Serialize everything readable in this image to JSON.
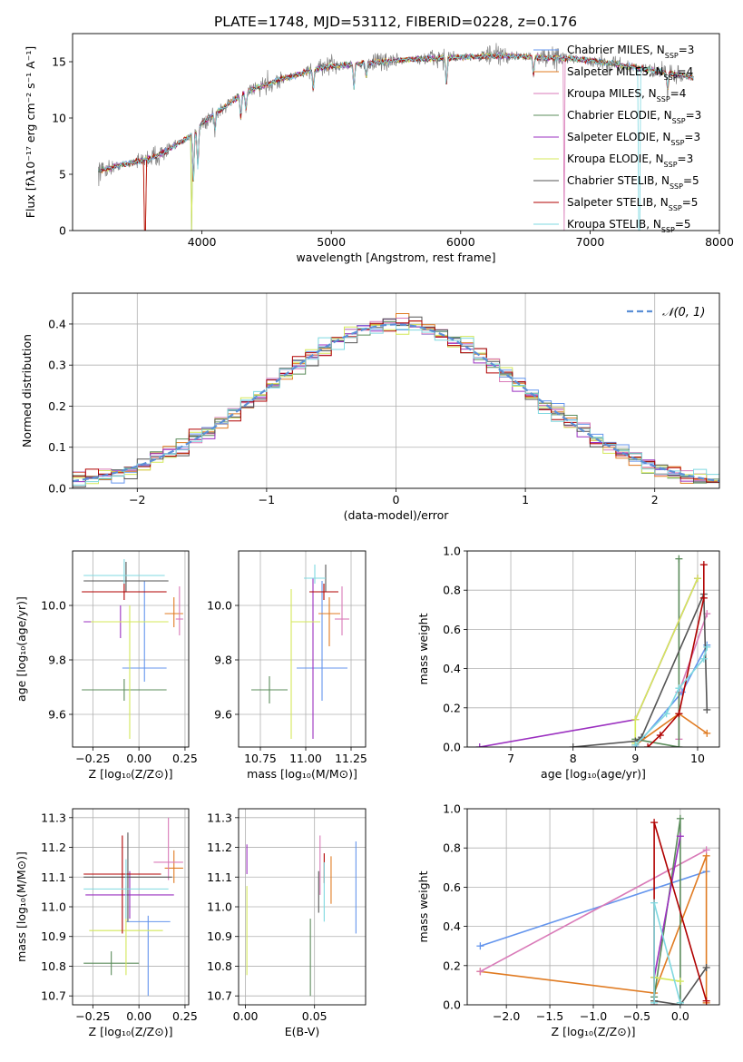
{
  "title": "PLATE=1748, MJD=53112, FIBERID=0228, z=0.176",
  "colors": [
    "#6495ed",
    "#e07b22",
    "#d97ab8",
    "#5b8c5b",
    "#9b30c0",
    "#d4e85a",
    "#555555",
    "#b00000",
    "#7fd8e0"
  ],
  "chart_data": [
    {
      "id": "spectrum",
      "type": "line",
      "xlabel": "wavelength [Angstrom, rest frame]",
      "ylabel": "Flux [fλ10⁻¹⁷ erg cm⁻² s⁻¹ A⁻¹]",
      "xlim": [
        3000,
        8000
      ],
      "ylim": [
        0,
        17.5
      ],
      "xticks": [
        4000,
        5000,
        6000,
        7000,
        8000
      ],
      "yticks": [
        0,
        5,
        10,
        15
      ],
      "legend": [
        "Chabrier MILES, N_SSP=3",
        "Salpeter MILES, N_SSP=4",
        "Kroupa MILES, N_SSP=4",
        "Chabrier ELODIE, N_SSP=3",
        "Salpeter ELODIE, N_SSP=3",
        "Kroupa ELODIE, N_SSP=3",
        "Chabrier STELIB, N_SSP=5",
        "Salpeter STELIB, N_SSP=5",
        "Kroupa STELIB, N_SSP=5"
      ],
      "continuum": {
        "x": [
          3200,
          3400,
          3600,
          3700,
          3800,
          3900,
          4000,
          4100,
          4200,
          4300,
          4400,
          4500,
          4600,
          4700,
          4800,
          4900,
          5000,
          5200,
          5400,
          5600,
          5800,
          6000,
          6200,
          6400,
          6600,
          6800,
          7000,
          7200,
          7400,
          7600,
          7800
        ],
        "y": [
          5.3,
          5.9,
          6.4,
          6.9,
          7.6,
          8.3,
          9.5,
          10.4,
          11.2,
          12.0,
          12.6,
          13.0,
          13.4,
          13.7,
          14.1,
          14.4,
          14.6,
          14.8,
          15.0,
          15.2,
          15.3,
          15.4,
          15.5,
          15.5,
          15.4,
          15.3,
          15.1,
          14.8,
          14.4,
          14.0,
          13.6
        ]
      }
    },
    {
      "id": "residuals",
      "type": "line",
      "xlabel": "(data-model)/error",
      "ylabel": "Normed distribution",
      "xlim": [
        -2.5,
        2.5
      ],
      "ylim": [
        0,
        0.475
      ],
      "xticks": [
        -2,
        -1,
        0,
        1,
        2
      ],
      "yticks": [
        0.0,
        0.1,
        0.2,
        0.3,
        0.4
      ],
      "legend": [
        "𝒩(0, 1)"
      ],
      "bin_width": 0.1
    },
    {
      "id": "age-vs-z",
      "type": "scatter",
      "xlabel": "Z [log₁₀(Z/Z⊙)]",
      "ylabel": "age  [log₁₀(age/yr)]",
      "xlim": [
        -0.36,
        0.27
      ],
      "ylim": [
        9.48,
        10.2
      ],
      "xticks": [
        -0.25,
        0.0,
        0.25
      ],
      "yticks": [
        9.6,
        9.8,
        10.0
      ],
      "points": [
        {
          "x": 0.03,
          "y": 9.77,
          "xerr": [
            0.12,
            0.12
          ],
          "yerr": [
            0.05,
            0.32
          ]
        },
        {
          "x": 0.19,
          "y": 9.97,
          "xerr": [
            0.05,
            0.05
          ],
          "yerr": [
            0.05,
            0.06
          ]
        },
        {
          "x": 0.22,
          "y": 9.95,
          "xerr": [
            0.02,
            0.02
          ],
          "yerr": [
            0.06,
            0.12
          ]
        },
        {
          "x": -0.08,
          "y": 9.69,
          "xerr": [
            0.23,
            0.23
          ],
          "yerr": [
            0.04,
            0.04
          ]
        },
        {
          "x": -0.1,
          "y": 9.94,
          "xerr": [
            0.2,
            0.2
          ],
          "yerr": [
            0.06,
            0.06
          ]
        },
        {
          "x": -0.05,
          "y": 9.94,
          "xerr": [
            0.21,
            0.21
          ],
          "yerr": [
            0.43,
            0.06
          ]
        },
        {
          "x": -0.07,
          "y": 10.09,
          "xerr": [
            0.23,
            0.23
          ],
          "yerr": [
            0.04,
            0.07
          ]
        },
        {
          "x": -0.08,
          "y": 10.05,
          "xerr": [
            0.23,
            0.23
          ],
          "yerr": [
            0.03,
            0.03
          ]
        },
        {
          "x": -0.08,
          "y": 10.11,
          "xerr": [
            0.22,
            0.22
          ],
          "yerr": [
            0.03,
            0.06
          ]
        }
      ]
    },
    {
      "id": "age-vs-mass",
      "type": "scatter",
      "xlabel": "mass [log₁₀(M/M⊙)]",
      "ylabel": "",
      "xlim": [
        10.63,
        11.33
      ],
      "ylim": [
        9.48,
        10.2
      ],
      "xticks": [
        10.75,
        11.0,
        11.25
      ],
      "yticks": [
        9.6,
        9.8,
        10.0
      ],
      "points": [
        {
          "x": 11.09,
          "y": 9.77,
          "xerr": [
            0.14,
            0.14
          ],
          "yerr": [
            0.12,
            0.32
          ]
        },
        {
          "x": 11.13,
          "y": 9.97,
          "xerr": [
            0.06,
            0.06
          ],
          "yerr": [
            0.12,
            0.06
          ]
        },
        {
          "x": 11.2,
          "y": 9.95,
          "xerr": [
            0.04,
            0.04
          ],
          "yerr": [
            0.06,
            0.12
          ]
        },
        {
          "x": 10.8,
          "y": 9.69,
          "xerr": [
            0.1,
            0.1
          ],
          "yerr": [
            0.05,
            0.05
          ]
        },
        {
          "x": 11.04,
          "y": 9.94,
          "xerr": [
            0.0,
            0.0
          ],
          "yerr": [
            0.43,
            0.16
          ]
        },
        {
          "x": 10.92,
          "y": 9.94,
          "xerr": [
            0.0,
            0.16
          ],
          "yerr": [
            0.43,
            0.12
          ]
        },
        {
          "x": 11.11,
          "y": 10.09,
          "xerr": [
            0.0,
            0.0
          ],
          "yerr": [
            0.04,
            0.06
          ]
        },
        {
          "x": 11.1,
          "y": 10.05,
          "xerr": [
            0.08,
            0.08
          ],
          "yerr": [
            0.03,
            0.03
          ]
        },
        {
          "x": 11.05,
          "y": 10.1,
          "xerr": [
            0.06,
            0.06
          ],
          "yerr": [
            0.02,
            0.05
          ]
        }
      ]
    },
    {
      "id": "weight-vs-age",
      "type": "line",
      "xlabel": "age  [log₁₀(age/yr)]",
      "ylabel": "mass weight",
      "xlim": [
        6.3,
        10.35
      ],
      "ylim": [
        0,
        1.0
      ],
      "xticks": [
        7,
        8,
        9,
        10
      ],
      "yticks": [
        0.0,
        0.2,
        0.4,
        0.6,
        0.8,
        1.0
      ],
      "series": [
        {
          "x": [
            9.0,
            9.75,
            10.15
          ],
          "y": [
            0.0,
            0.28,
            0.52
          ]
        },
        {
          "x": [
            9.0,
            9.7,
            10.15
          ],
          "y": [
            0.01,
            0.17,
            0.07
          ]
        },
        {
          "x": [
            9.7,
            9.7,
            10.15
          ],
          "y": [
            0.04,
            0.28,
            0.68
          ]
        },
        {
          "x": [
            9.0,
            9.7,
            9.7
          ],
          "y": [
            0.04,
            0.0,
            0.96
          ]
        },
        {
          "x": [
            6.5,
            9.0,
            10.0
          ],
          "y": [
            0.0,
            0.14,
            0.86
          ]
        },
        {
          "x": [
            9.0,
            9.0,
            10.0
          ],
          "y": [
            0.02,
            0.14,
            0.86
          ]
        },
        {
          "x": [
            8.0,
            9.0,
            9.1,
            10.1,
            10.15
          ],
          "y": [
            0.0,
            0.03,
            0.05,
            0.78,
            0.19
          ]
        },
        {
          "x": [
            9.2,
            9.4,
            9.7,
            10.1,
            10.1
          ],
          "y": [
            0.0,
            0.06,
            0.17,
            0.76,
            0.93
          ]
        },
        {
          "x": [
            9.0,
            9.5,
            9.7,
            10.1,
            10.15
          ],
          "y": [
            0.01,
            0.17,
            0.3,
            0.45,
            0.51
          ]
        }
      ]
    },
    {
      "id": "mass-vs-z",
      "type": "scatter",
      "xlabel": "Z [log₁₀(Z/Z⊙)]",
      "ylabel": "mass [log₁₀(M/M⊙)]",
      "xlim": [
        -0.36,
        0.27
      ],
      "ylim": [
        10.67,
        11.33
      ],
      "xticks": [
        -0.25,
        0.0,
        0.25
      ],
      "yticks": [
        10.7,
        10.8,
        10.9,
        11.0,
        11.1,
        11.2,
        11.3
      ],
      "points": [
        {
          "x": 0.05,
          "y": 10.95,
          "xerr": [
            0.12,
            0.12
          ],
          "yerr": [
            0.25,
            0.02
          ]
        },
        {
          "x": 0.19,
          "y": 11.13,
          "xerr": [
            0.05,
            0.05
          ],
          "yerr": [
            0.05,
            0.06
          ]
        },
        {
          "x": 0.16,
          "y": 11.15,
          "xerr": [
            0.08,
            0.08
          ],
          "yerr": [
            0.06,
            0.15
          ]
        },
        {
          "x": -0.15,
          "y": 10.81,
          "xerr": [
            0.15,
            0.15
          ],
          "yerr": [
            0.04,
            0.04
          ]
        },
        {
          "x": -0.05,
          "y": 11.04,
          "xerr": [
            0.24,
            0.24
          ],
          "yerr": [
            0.08,
            0.08
          ]
        },
        {
          "x": -0.07,
          "y": 10.92,
          "xerr": [
            0.2,
            0.2
          ],
          "yerr": [
            0.15,
            0.15
          ]
        },
        {
          "x": -0.06,
          "y": 11.1,
          "xerr": [
            0.24,
            0.24
          ],
          "yerr": [
            0.15,
            0.15
          ]
        },
        {
          "x": -0.09,
          "y": 11.11,
          "xerr": [
            0.21,
            0.21
          ],
          "yerr": [
            0.2,
            0.13
          ]
        },
        {
          "x": -0.07,
          "y": 11.06,
          "xerr": [
            0.23,
            0.23
          ],
          "yerr": [
            0.1,
            0.1
          ]
        }
      ]
    },
    {
      "id": "mass-vs-ebv",
      "type": "scatter",
      "xlabel": "E(B-V)",
      "ylabel": "",
      "xlim": [
        -0.005,
        0.087
      ],
      "ylim": [
        10.67,
        11.33
      ],
      "xticks": [
        0.0,
        0.05
      ],
      "yticks": [
        10.7,
        10.8,
        10.9,
        11.0,
        11.1,
        11.2,
        11.3
      ],
      "points": [
        {
          "x": 0.08,
          "y": 11.06,
          "xerr": [
            0,
            0
          ],
          "yerr": [
            0.15,
            0.16
          ]
        },
        {
          "x": 0.062,
          "y": 11.09,
          "xerr": [
            0,
            0
          ],
          "yerr": [
            0.08,
            0.08
          ]
        },
        {
          "x": 0.054,
          "y": 11.14,
          "xerr": [
            0,
            0
          ],
          "yerr": [
            0.1,
            0.1
          ]
        },
        {
          "x": 0.047,
          "y": 10.82,
          "xerr": [
            0,
            0
          ],
          "yerr": [
            0.12,
            0.14
          ]
        },
        {
          "x": 0.001,
          "y": 11.16,
          "xerr": [
            0,
            0
          ],
          "yerr": [
            0.05,
            0.05
          ]
        },
        {
          "x": 0.001,
          "y": 10.92,
          "xerr": [
            0,
            0
          ],
          "yerr": [
            0.15,
            0.15
          ]
        },
        {
          "x": 0.053,
          "y": 11.05,
          "xerr": [
            0,
            0
          ],
          "yerr": [
            0.07,
            0.07
          ]
        },
        {
          "x": 0.057,
          "y": 11.14,
          "xerr": [
            0,
            0
          ],
          "yerr": [
            0.06,
            0.04
          ]
        },
        {
          "x": 0.057,
          "y": 11.05,
          "xerr": [
            0,
            0
          ],
          "yerr": [
            0.1,
            0.1
          ]
        }
      ]
    },
    {
      "id": "weight-vs-z",
      "type": "line",
      "xlabel": "Z [log₁₀(Z/Z⊙)]",
      "ylabel": "mass weight",
      "xlim": [
        -2.45,
        0.45
      ],
      "ylim": [
        0,
        1.0
      ],
      "xticks": [
        -2.0,
        -1.5,
        -1.0,
        -0.5,
        0.0
      ],
      "yticks": [
        0.0,
        0.2,
        0.4,
        0.6,
        0.8,
        1.0
      ],
      "series": [
        {
          "x": [
            -2.3,
            0.3
          ],
          "y": [
            0.3,
            0.68
          ]
        },
        {
          "x": [
            -2.3,
            -0.3,
            0.3,
            0.3
          ],
          "y": [
            0.17,
            0.06,
            0.76,
            0.01
          ]
        },
        {
          "x": [
            -2.3,
            0.3
          ],
          "y": [
            0.17,
            0.79
          ]
        },
        {
          "x": [
            -0.3,
            0.0,
            0.0
          ],
          "y": [
            0.04,
            0.95,
            0.01
          ]
        },
        {
          "x": [
            -0.3,
            0.0
          ],
          "y": [
            0.14,
            0.86
          ]
        },
        {
          "x": [
            -0.3,
            -0.3,
            0.0
          ],
          "y": [
            0.02,
            0.14,
            0.12
          ]
        },
        {
          "x": [
            -0.3,
            0.0,
            0.3
          ],
          "y": [
            0.02,
            0.0,
            0.19
          ]
        },
        {
          "x": [
            -0.3,
            -0.3,
            0.3
          ],
          "y": [
            0.0,
            0.93,
            0.02
          ]
        },
        {
          "x": [
            -0.3,
            -0.3,
            0.0
          ],
          "y": [
            0.01,
            0.52,
            0.01
          ]
        }
      ]
    }
  ]
}
